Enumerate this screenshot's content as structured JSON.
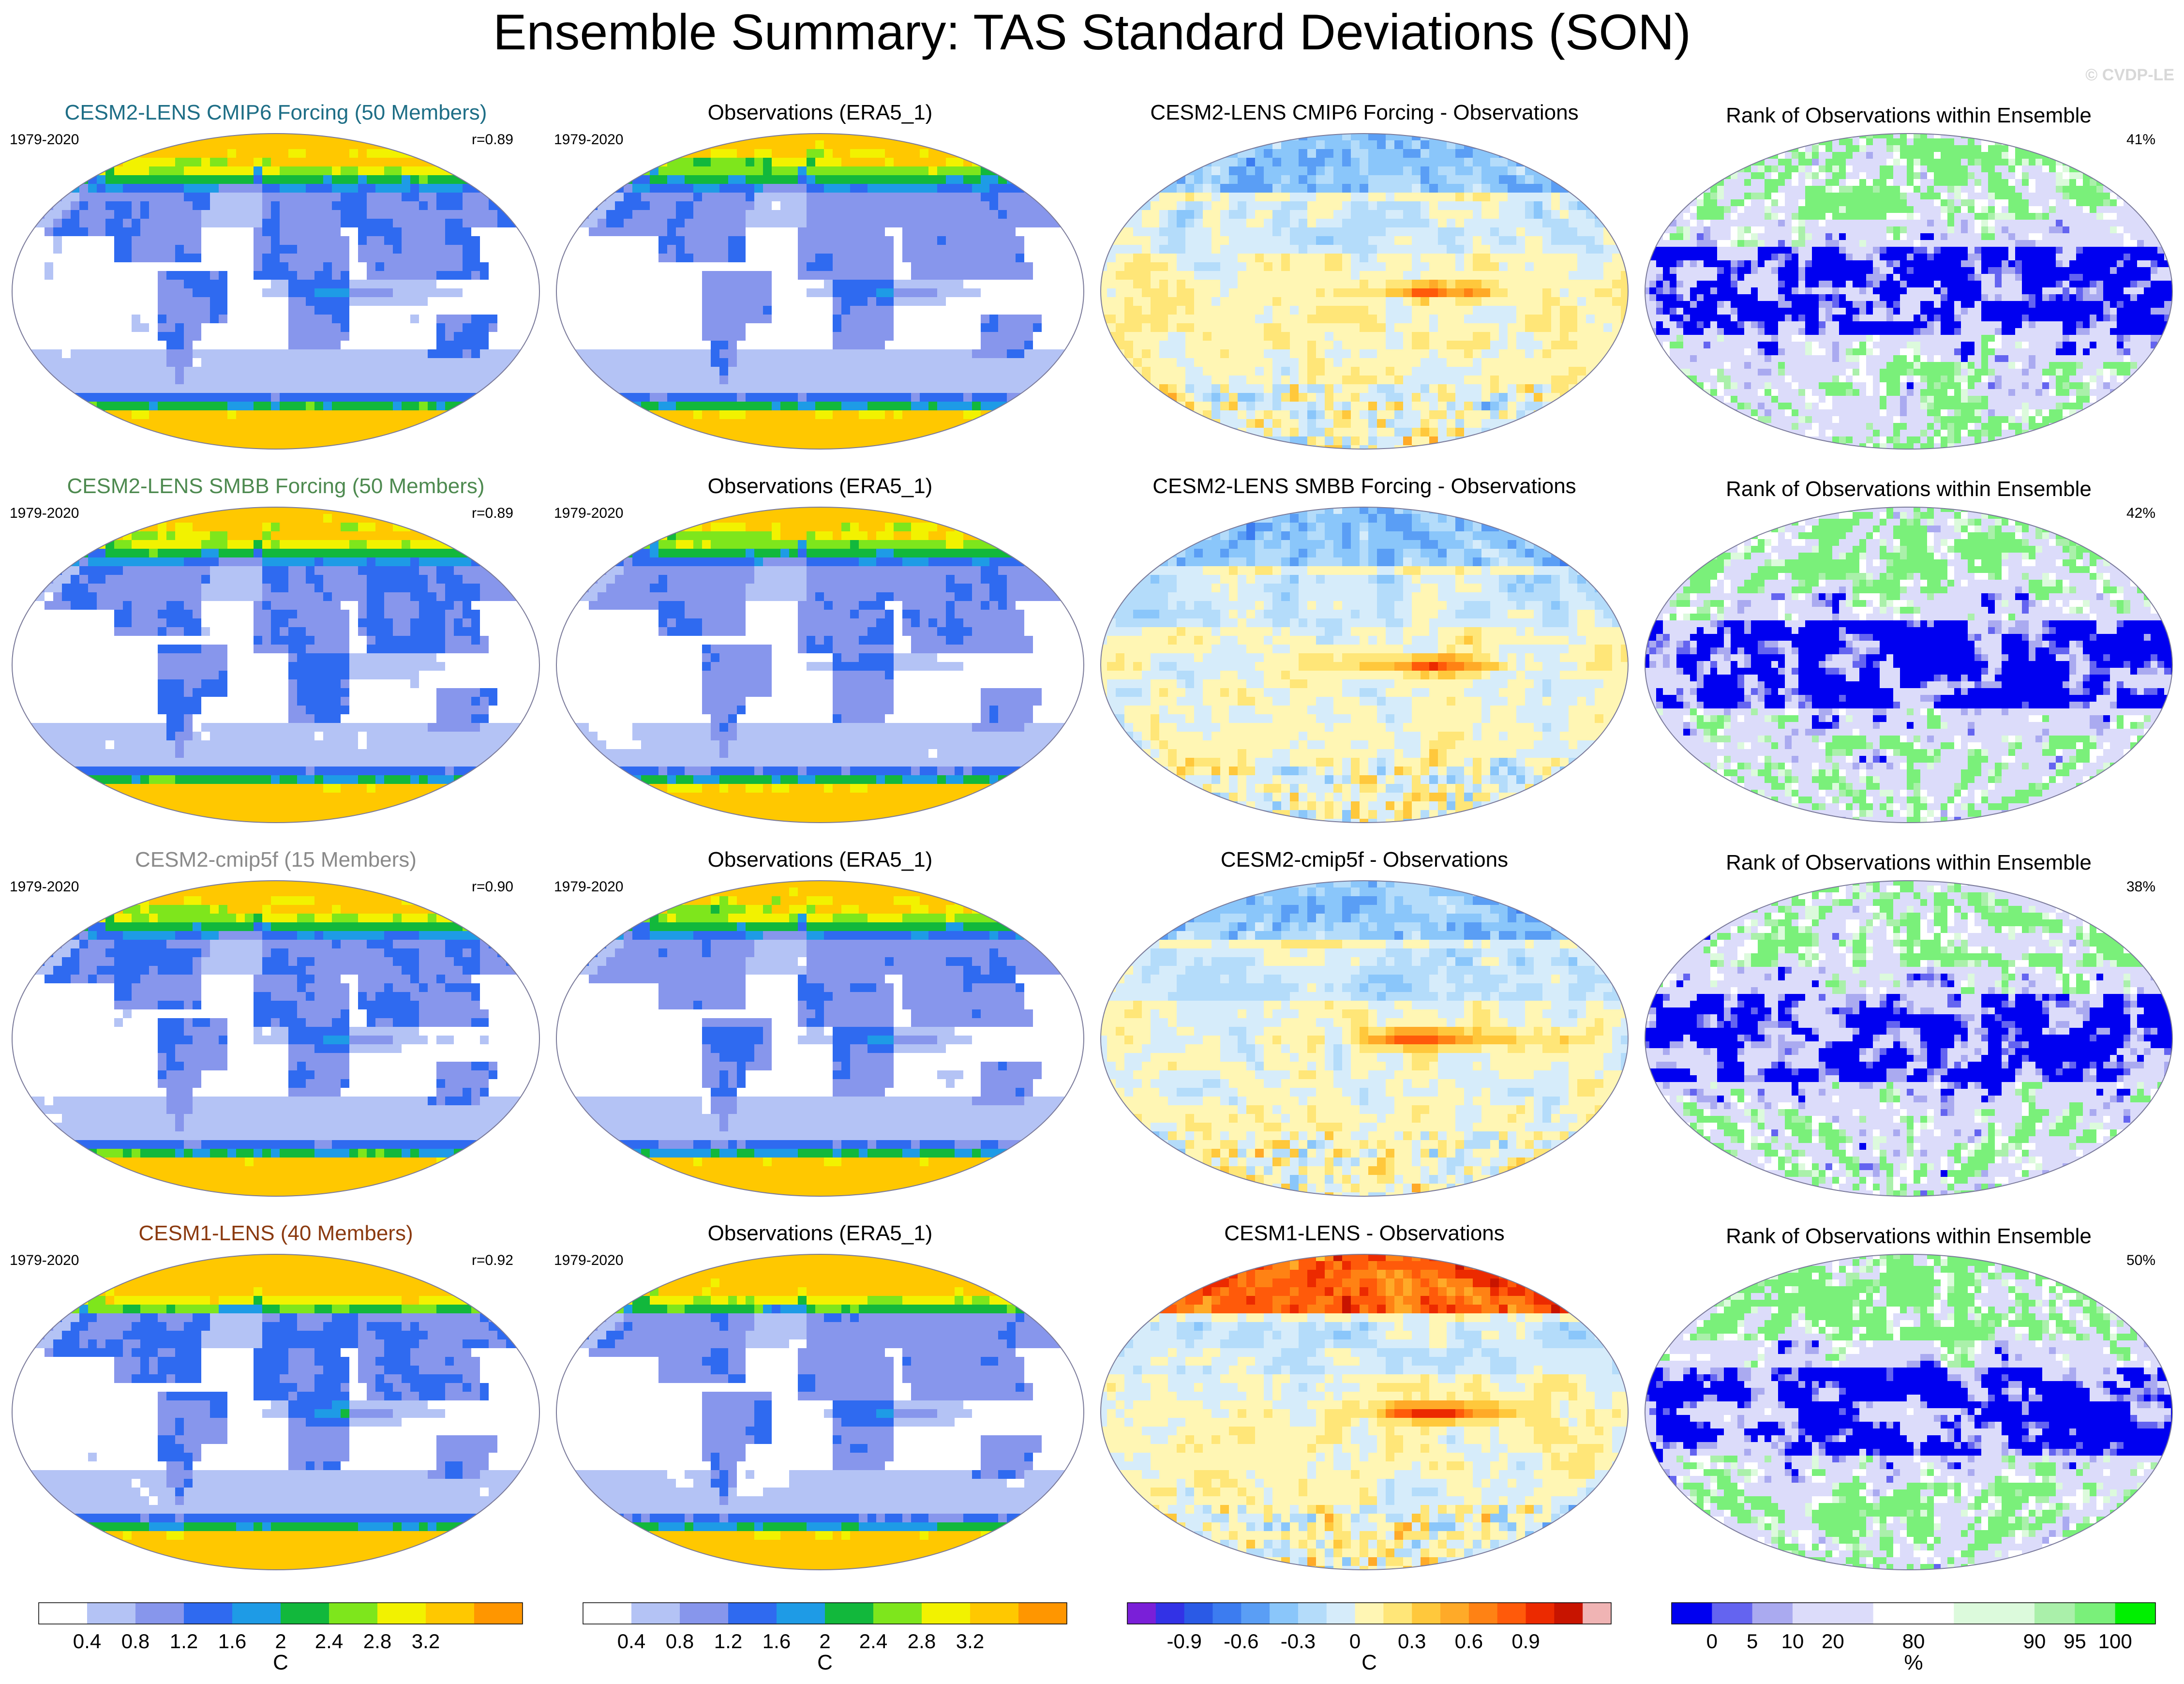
{
  "title": "Ensemble Summary: TAS Standard Deviations (SON)",
  "copyright": "© CVDP-LE",
  "rows": [
    {
      "ens_title": "CESM2-LENS CMIP6 Forcing (50 Members)",
      "ens_title_color": "#1e6e86",
      "ens_period": "1979-2020",
      "ens_r": "r=0.89",
      "obs_title": "Observations (ERA5_1)",
      "obs_period": "1979-2020",
      "diff_title": "CESM2-LENS CMIP6 Forcing - Observations",
      "rank_title": "Rank of Observations within Ensemble",
      "rank_pct": "41%"
    },
    {
      "ens_title": "CESM2-LENS SMBB Forcing (50 Members)",
      "ens_title_color": "#4e8a50",
      "ens_period": "1979-2020",
      "ens_r": "r=0.89",
      "obs_title": "Observations (ERA5_1)",
      "obs_period": "1979-2020",
      "diff_title": "CESM2-LENS SMBB Forcing - Observations",
      "rank_title": "Rank of Observations within Ensemble",
      "rank_pct": "42%"
    },
    {
      "ens_title": "CESM2-cmip5f (15 Members)",
      "ens_title_color": "#8a8a8a",
      "ens_period": "1979-2020",
      "ens_r": "r=0.90",
      "obs_title": "Observations (ERA5_1)",
      "obs_period": "1979-2020",
      "diff_title": "CESM2-cmip5f - Observations",
      "rank_title": "Rank of Observations within Ensemble",
      "rank_pct": "38%"
    },
    {
      "ens_title": "CESM1-LENS (40 Members)",
      "ens_title_color": "#8b3a10",
      "ens_period": "1979-2020",
      "ens_r": "r=0.92",
      "obs_title": "Observations (ERA5_1)",
      "obs_period": "1979-2020",
      "diff_title": "CESM1-LENS - Observations",
      "rank_title": "Rank of Observations within Ensemble",
      "rank_pct": "50%"
    }
  ],
  "colors": {
    "std_levels": [
      "#ffffff",
      "#b4c3f5",
      "#8796ec",
      "#2f6af0",
      "#1e9be6",
      "#12b83c",
      "#7ee61c",
      "#f2f200",
      "#ffc800",
      "#ff9600",
      "#ff2800"
    ],
    "diff_levels": [
      "#7a1fd8",
      "#3232e6",
      "#2a5ae6",
      "#3c7cf0",
      "#5a9ef5",
      "#8ac6fa",
      "#b4dcfa",
      "#d6ecfa",
      "#fff6b4",
      "#ffe678",
      "#ffc83c",
      "#ffaa28",
      "#ff8214",
      "#ff5a0a",
      "#ec2a00",
      "#c81400",
      "#f0b4b4"
    ],
    "rank_levels": [
      "#0000f0",
      "#6464f0",
      "#aaaaf0",
      "#dcdcfa",
      "#ffffff",
      "#dcfadc",
      "#aaf0aa",
      "#7af07a",
      "#00f000"
    ]
  },
  "chart_data": [
    {
      "type": "heatmap",
      "panel": "ensemble mean standard deviation",
      "colorbar": {
        "unit": "C",
        "tick_labels": [
          "0.4",
          "0.8",
          "1.2",
          "1.6",
          "2",
          "2.4",
          "2.8",
          "3.2"
        ],
        "levels": [
          0.4,
          0.8,
          1.2,
          1.6,
          2.0,
          2.4,
          2.8,
          3.2
        ],
        "range": [
          0,
          3.6
        ]
      }
    },
    {
      "type": "heatmap",
      "panel": "observed standard deviation",
      "colorbar": {
        "unit": "C",
        "tick_labels": [
          "0.4",
          "0.8",
          "1.2",
          "1.6",
          "2",
          "2.4",
          "2.8",
          "3.2"
        ],
        "levels": [
          0.4,
          0.8,
          1.2,
          1.6,
          2.0,
          2.4,
          2.8,
          3.2
        ],
        "range": [
          0,
          3.6
        ]
      }
    },
    {
      "type": "heatmap",
      "panel": "ensemble minus observations",
      "colorbar": {
        "unit": "C",
        "tick_labels": [
          "-0.9",
          "-0.6",
          "-0.3",
          "0",
          "0.3",
          "0.6",
          "0.9"
        ],
        "levels": [
          -0.9,
          -0.6,
          -0.3,
          0,
          0.3,
          0.6,
          0.9
        ],
        "range": [
          -1.05,
          1.05
        ]
      }
    },
    {
      "type": "heatmap",
      "panel": "rank of observations within ensemble",
      "colorbar": {
        "unit": "%",
        "tick_labels": [
          "0",
          "5",
          "10",
          "20",
          "80",
          "90",
          "95",
          "100"
        ],
        "levels": [
          0,
          5,
          10,
          20,
          80,
          90,
          95,
          100
        ],
        "range": [
          0,
          100
        ]
      }
    }
  ]
}
